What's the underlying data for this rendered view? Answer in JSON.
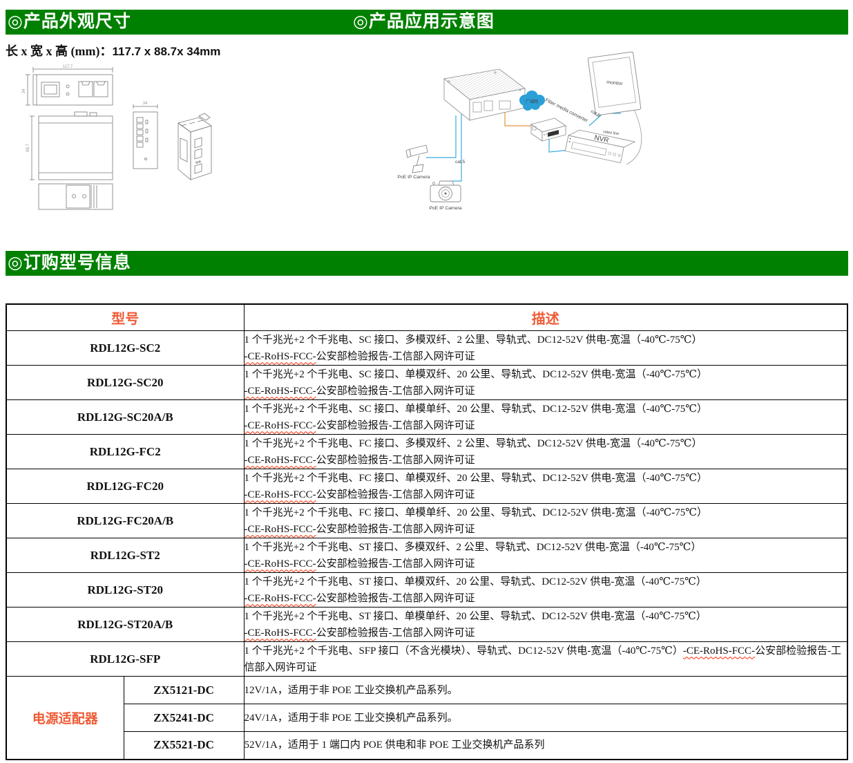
{
  "colors": {
    "section_green": "#008000",
    "table_header_red": "#ef5b36",
    "cable_blue": "#3aabdc",
    "cable_orange": "#e8923a",
    "cloud_blue": "#2b9fd6"
  },
  "sections": {
    "dimensions_header": "◎产品外观尺寸",
    "application_header": "◎产品应用示意图",
    "ordering_header": "◎订购型号信息"
  },
  "dimensions": {
    "label": "长 x 宽 x 高 (mm)：",
    "value": "117.7 x 88.7x 34mm",
    "drawing": {
      "top_width": "117.7",
      "top_depth": "34",
      "front_height": "88.7",
      "side_width": "34"
    }
  },
  "application_diagram": {
    "labels": {
      "cloud": "广域网",
      "fiber_converter": "Fiber media converter",
      "monitor": "monitor",
      "nvr": "NVR",
      "video_line": "video line",
      "cat5_camera": "cat.5",
      "cat5_nvr": "cat.5",
      "poe_camera_1": "PoE IP Camera",
      "poe_camera_2": "PoE IP Camera"
    }
  },
  "order_table": {
    "headers": {
      "model": "型号",
      "description": "描述"
    },
    "rows": [
      {
        "model": "RDL12G-SC2",
        "line1": "1 个千兆光+2 个千兆电、SC 接口、多模双纤、2 公里、导轨式、DC12-52V 供电-宽温（-40℃-75℃）",
        "wavy": "-CE-RoHS-FCC-",
        "rest": "公安部检验报告-工信部入网许可证",
        "two_lines": true
      },
      {
        "model": "RDL12G-SC20",
        "line1": "1 个千兆光+2 个千兆电、SC 接口、单模双纤、20 公里、导轨式、DC12-52V 供电-宽温（-40℃-75℃）",
        "wavy": "-CE-RoHS-FCC-",
        "rest": "公安部检验报告-工信部入网许可证",
        "two_lines": true
      },
      {
        "model": "RDL12G-SC20A/B",
        "line1": "1 个千兆光+2 个千兆电、SC 接口、单模单纤、20 公里、导轨式、DC12-52V 供电-宽温（-40℃-75℃）",
        "wavy": "-CE-RoHS-FCC-",
        "rest": "公安部检验报告-工信部入网许可证",
        "two_lines": true
      },
      {
        "model": "RDL12G-FC2",
        "line1": "1 个千兆光+2 个千兆电、FC 接口、多模双纤、2 公里、导轨式、DC12-52V 供电-宽温（-40℃-75℃）",
        "wavy": "-CE-RoHS-FCC-",
        "rest": "公安部检验报告-工信部入网许可证",
        "two_lines": true
      },
      {
        "model": "RDL12G-FC20",
        "line1": "1 个千兆光+2 个千兆电、FC 接口、单模双纤、20 公里、导轨式、DC12-52V 供电-宽温（-40℃-75℃）",
        "wavy": "-CE-RoHS-FCC-",
        "rest": "公安部检验报告-工信部入网许可证",
        "two_lines": true
      },
      {
        "model": "RDL12G-FC20A/B",
        "line1": "1 个千兆光+2 个千兆电、FC 接口、单模单纤、20 公里、导轨式、DC12-52V 供电-宽温（-40℃-75℃）",
        "wavy": "-CE-RoHS-FCC-",
        "rest": "公安部检验报告-工信部入网许可证",
        "two_lines": true
      },
      {
        "model": "RDL12G-ST2",
        "line1": "1 个千兆光+2 个千兆电、ST 接口、多模双纤、2 公里、导轨式、DC12-52V 供电-宽温（-40℃-75℃）",
        "wavy": "-CE-RoHS-FCC-",
        "rest": "公安部检验报告-工信部入网许可证",
        "two_lines": true
      },
      {
        "model": "RDL12G-ST20",
        "line1": "1 个千兆光+2 个千兆电、ST 接口、单模双纤、20 公里、导轨式、DC12-52V 供电-宽温（-40℃-75℃）",
        "wavy": "-CE-RoHS-FCC-",
        "rest": "公安部检验报告-工信部入网许可证",
        "two_lines": true
      },
      {
        "model": "RDL12G-ST20A/B",
        "line1": "1 个千兆光+2 个千兆电、ST 接口、单模单纤、20 公里、导轨式、DC12-52V 供电-宽温（-40℃-75℃）",
        "wavy": "-CE-RoHS-FCC-",
        "rest": "公安部检验报告-工信部入网许可证",
        "two_lines": true
      },
      {
        "model": "RDL12G-SFP",
        "line1": "1 个千兆光+2 个千兆电、SFP 接口（不含光模块）、导轨式、DC12-52V 供电-宽温（-40℃-75℃）",
        "wavy": "-CE-RoHS-FCC-",
        "rest": "公安部检验报告-工信部入网许可证",
        "two_lines": false
      }
    ],
    "adapter_group_label": "电源适配器",
    "adapter_rows": [
      {
        "model": "ZX5121-DC",
        "desc": "12V/1A，适用于非 POE 工业交换机产品系列。"
      },
      {
        "model": "ZX5241-DC",
        "desc": "24V/1A，适用于非 POE 工业交换机产品系列。"
      },
      {
        "model": "ZX5521-DC",
        "desc": "52V/1A，适用于 1 端口内 POE 供电和非 POE 工业交换机产品系列"
      }
    ]
  }
}
